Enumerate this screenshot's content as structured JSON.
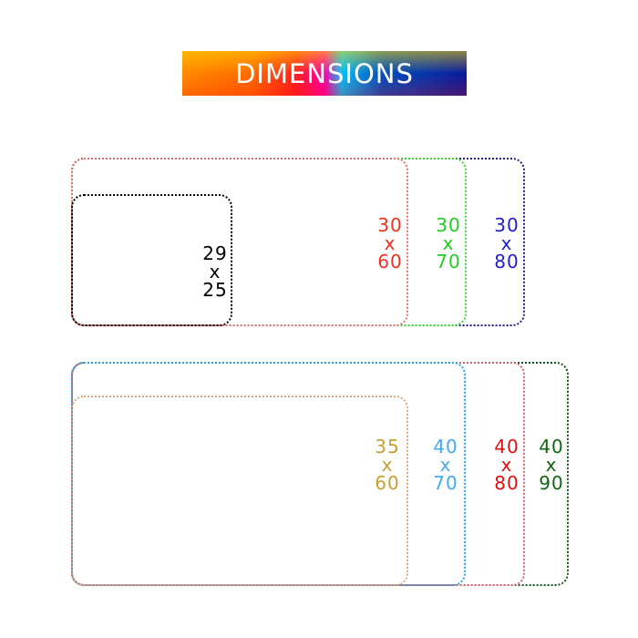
{
  "title": "DIMENSIONS",
  "groups": [
    {
      "items": [
        {
          "w": "30",
          "sep": "x",
          "h": "80",
          "border": "#1a1a9a",
          "color": "#2020d0"
        },
        {
          "w": "30",
          "sep": "x",
          "h": "70",
          "border": "#33dd33",
          "color": "#22cc22"
        },
        {
          "w": "30",
          "sep": "x",
          "h": "60",
          "border": "#e87070",
          "color": "#f03020"
        },
        {
          "w": "29",
          "sep": "x",
          "h": "25",
          "border": "#000000",
          "color": "#000000"
        }
      ]
    },
    {
      "items": [
        {
          "w": "40",
          "sep": "x",
          "h": "90",
          "border": "#115511",
          "color": "#116611"
        },
        {
          "w": "40",
          "sep": "x",
          "h": "80",
          "border": "#e06070",
          "color": "#dd1111"
        },
        {
          "w": "40",
          "sep": "x",
          "h": "70",
          "border": "#22aaee",
          "color": "#44aaee"
        },
        {
          "w": "35",
          "sep": "x",
          "h": "60",
          "border": "#d8a878",
          "color": "#c8a030"
        }
      ]
    }
  ]
}
